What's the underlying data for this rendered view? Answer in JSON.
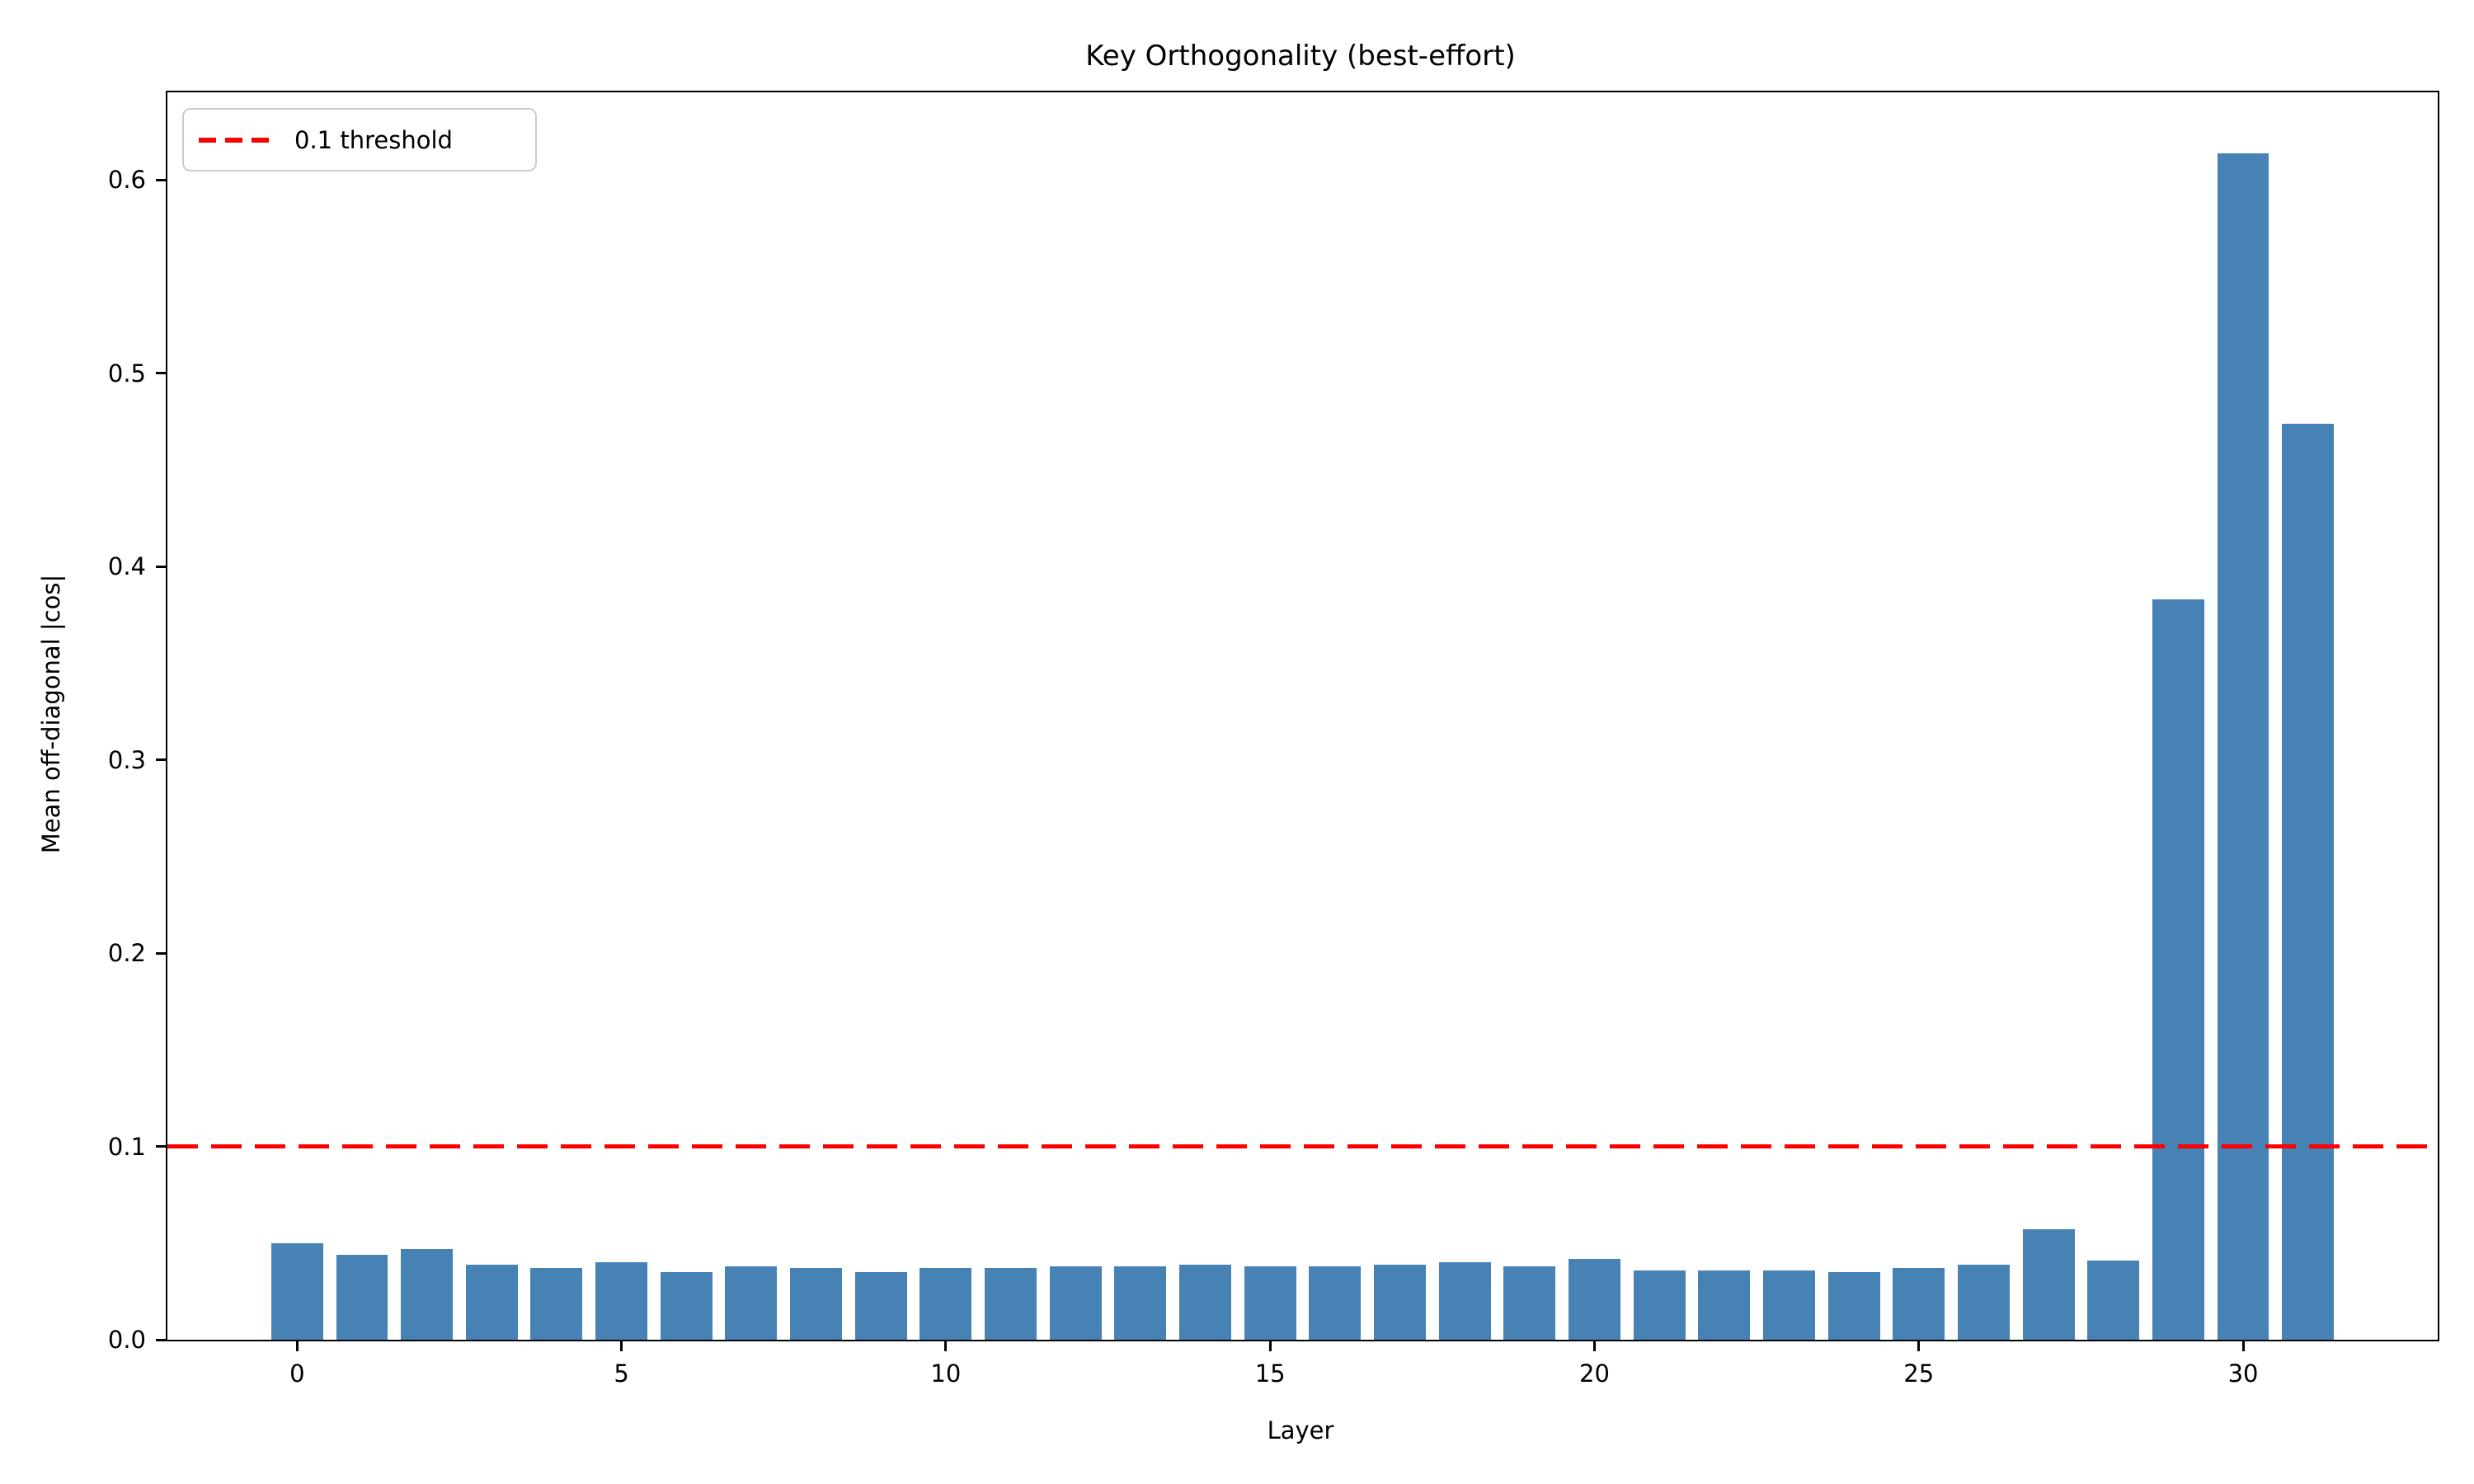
{
  "chart_data": {
    "type": "bar",
    "title": "Key Orthogonality (best-effort)",
    "xlabel": "Layer",
    "ylabel": "Mean off-diagonal |cos|",
    "categories": [
      0,
      1,
      2,
      3,
      4,
      5,
      6,
      7,
      8,
      9,
      10,
      11,
      12,
      13,
      14,
      15,
      16,
      17,
      18,
      19,
      20,
      21,
      22,
      23,
      24,
      25,
      26,
      27,
      28,
      29,
      30,
      31
    ],
    "values": [
      0.05,
      0.044,
      0.047,
      0.039,
      0.037,
      0.04,
      0.035,
      0.038,
      0.037,
      0.035,
      0.037,
      0.037,
      0.038,
      0.038,
      0.039,
      0.038,
      0.038,
      0.039,
      0.04,
      0.038,
      0.042,
      0.036,
      0.036,
      0.036,
      0.035,
      0.037,
      0.039,
      0.057,
      0.041,
      0.383,
      0.614,
      0.474
    ],
    "bar_color": "#4682b4",
    "xticks": [
      0,
      5,
      10,
      15,
      20,
      25,
      30
    ],
    "yticks": [
      0.0,
      0.1,
      0.2,
      0.3,
      0.4,
      0.5,
      0.6
    ],
    "xlim": [
      -2,
      33
    ],
    "ylim": [
      0,
      0.6454
    ],
    "grid": false,
    "legend_position": "upper left",
    "threshold_line": {
      "value": 0.1,
      "label": "0.1 threshold",
      "color": "#ff0000",
      "style": "dashed"
    }
  }
}
